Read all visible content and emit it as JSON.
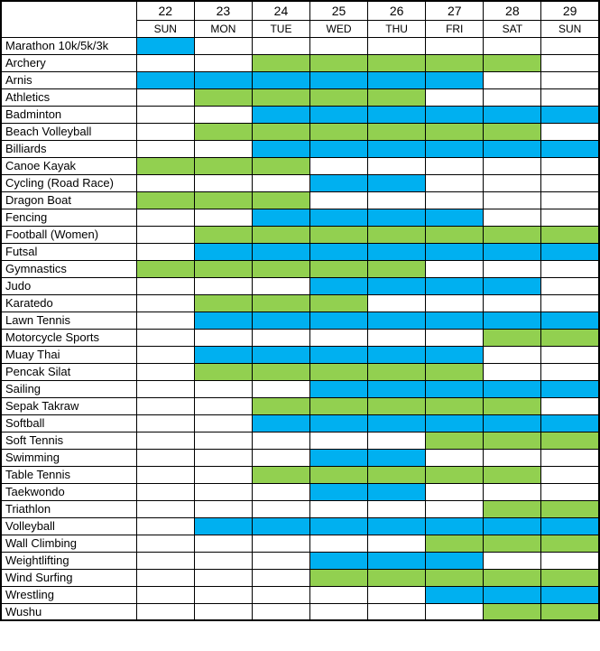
{
  "chart_data": {
    "type": "table",
    "description_visible_text_only": "",
    "columns": [
      {
        "date": "22",
        "day": "SUN"
      },
      {
        "date": "23",
        "day": "MON"
      },
      {
        "date": "24",
        "day": "TUE"
      },
      {
        "date": "25",
        "day": "WED"
      },
      {
        "date": "26",
        "day": "THU"
      },
      {
        "date": "27",
        "day": "FRI"
      },
      {
        "date": "28",
        "day": "SAT"
      },
      {
        "date": "29",
        "day": "SUN"
      }
    ],
    "colors": {
      "blue": "#00B0F0",
      "green": "#92D050",
      "grid": "#000000",
      "background": "#FFFFFF"
    },
    "rows": [
      {
        "label": "Marathon 10k/5k/3k",
        "color": "blue",
        "filled": [
          1,
          0,
          0,
          0,
          0,
          0,
          0,
          0
        ]
      },
      {
        "label": "Archery",
        "color": "green",
        "filled": [
          0,
          0,
          1,
          1,
          1,
          1,
          1,
          0
        ]
      },
      {
        "label": "Arnis",
        "color": "blue",
        "filled": [
          1,
          1,
          1,
          1,
          1,
          1,
          0,
          0
        ]
      },
      {
        "label": "Athletics",
        "color": "green",
        "filled": [
          0,
          1,
          1,
          1,
          1,
          0,
          0,
          0
        ]
      },
      {
        "label": "Badminton",
        "color": "blue",
        "filled": [
          0,
          0,
          1,
          1,
          1,
          1,
          1,
          1
        ]
      },
      {
        "label": "Beach Volleyball",
        "color": "green",
        "filled": [
          0,
          1,
          1,
          1,
          1,
          1,
          1,
          0
        ]
      },
      {
        "label": "Billiards",
        "color": "blue",
        "filled": [
          0,
          0,
          1,
          1,
          1,
          1,
          1,
          1
        ]
      },
      {
        "label": "Canoe Kayak",
        "color": "green",
        "filled": [
          1,
          1,
          1,
          0,
          0,
          0,
          0,
          0
        ]
      },
      {
        "label": "Cycling (Road Race)",
        "color": "blue",
        "filled": [
          0,
          0,
          0,
          1,
          1,
          0,
          0,
          0
        ]
      },
      {
        "label": "Dragon Boat",
        "color": "green",
        "filled": [
          1,
          1,
          1,
          0,
          0,
          0,
          0,
          0
        ]
      },
      {
        "label": "Fencing",
        "color": "blue",
        "filled": [
          0,
          0,
          1,
          1,
          1,
          1,
          0,
          0
        ]
      },
      {
        "label": "Football (Women)",
        "color": "green",
        "filled": [
          0,
          1,
          1,
          1,
          1,
          1,
          1,
          1
        ]
      },
      {
        "label": "Futsal",
        "color": "blue",
        "filled": [
          0,
          1,
          1,
          1,
          1,
          1,
          1,
          1
        ]
      },
      {
        "label": "Gymnastics",
        "color": "green",
        "filled": [
          1,
          1,
          1,
          1,
          1,
          0,
          0,
          0
        ]
      },
      {
        "label": "Judo",
        "color": "blue",
        "filled": [
          0,
          0,
          0,
          1,
          1,
          1,
          1,
          0
        ]
      },
      {
        "label": "Karatedo",
        "color": "green",
        "filled": [
          0,
          1,
          1,
          1,
          0,
          0,
          0,
          0
        ]
      },
      {
        "label": "Lawn Tennis",
        "color": "blue",
        "filled": [
          0,
          1,
          1,
          1,
          1,
          1,
          1,
          1
        ]
      },
      {
        "label": "Motorcycle Sports",
        "color": "green",
        "filled": [
          0,
          0,
          0,
          0,
          0,
          0,
          1,
          1
        ]
      },
      {
        "label": "Muay Thai",
        "color": "blue",
        "filled": [
          0,
          1,
          1,
          1,
          1,
          1,
          0,
          0
        ]
      },
      {
        "label": "Pencak Silat",
        "color": "green",
        "filled": [
          0,
          1,
          1,
          1,
          1,
          1,
          0,
          0
        ]
      },
      {
        "label": "Sailing",
        "color": "blue",
        "filled": [
          0,
          0,
          0,
          1,
          1,
          1,
          1,
          1
        ]
      },
      {
        "label": "Sepak Takraw",
        "color": "green",
        "filled": [
          0,
          0,
          1,
          1,
          1,
          1,
          1,
          0
        ]
      },
      {
        "label": "Softball",
        "color": "blue",
        "filled": [
          0,
          0,
          1,
          1,
          1,
          1,
          1,
          1
        ]
      },
      {
        "label": "Soft Tennis",
        "color": "green",
        "filled": [
          0,
          0,
          0,
          0,
          0,
          1,
          1,
          1
        ]
      },
      {
        "label": "Swimming",
        "color": "blue",
        "filled": [
          0,
          0,
          0,
          1,
          1,
          0,
          0,
          0
        ]
      },
      {
        "label": "Table Tennis",
        "color": "green",
        "filled": [
          0,
          0,
          1,
          1,
          1,
          1,
          1,
          0
        ]
      },
      {
        "label": "Taekwondo",
        "color": "blue",
        "filled": [
          0,
          0,
          0,
          1,
          1,
          0,
          0,
          0
        ]
      },
      {
        "label": "Triathlon",
        "color": "green",
        "filled": [
          0,
          0,
          0,
          0,
          0,
          0,
          1,
          1
        ]
      },
      {
        "label": "Volleyball",
        "color": "blue",
        "filled": [
          0,
          1,
          1,
          1,
          1,
          1,
          1,
          1
        ]
      },
      {
        "label": "Wall Climbing",
        "color": "green",
        "filled": [
          0,
          0,
          0,
          0,
          0,
          1,
          1,
          1
        ]
      },
      {
        "label": "Weightlifting",
        "color": "blue",
        "filled": [
          0,
          0,
          0,
          1,
          1,
          1,
          0,
          0
        ]
      },
      {
        "label": "Wind Surfing",
        "color": "green",
        "filled": [
          0,
          0,
          0,
          1,
          1,
          1,
          1,
          1
        ]
      },
      {
        "label": "Wrestling",
        "color": "blue",
        "filled": [
          0,
          0,
          0,
          0,
          0,
          1,
          1,
          1
        ]
      },
      {
        "label": "Wushu",
        "color": "green",
        "filled": [
          0,
          0,
          0,
          0,
          0,
          0,
          1,
          1
        ]
      }
    ]
  }
}
